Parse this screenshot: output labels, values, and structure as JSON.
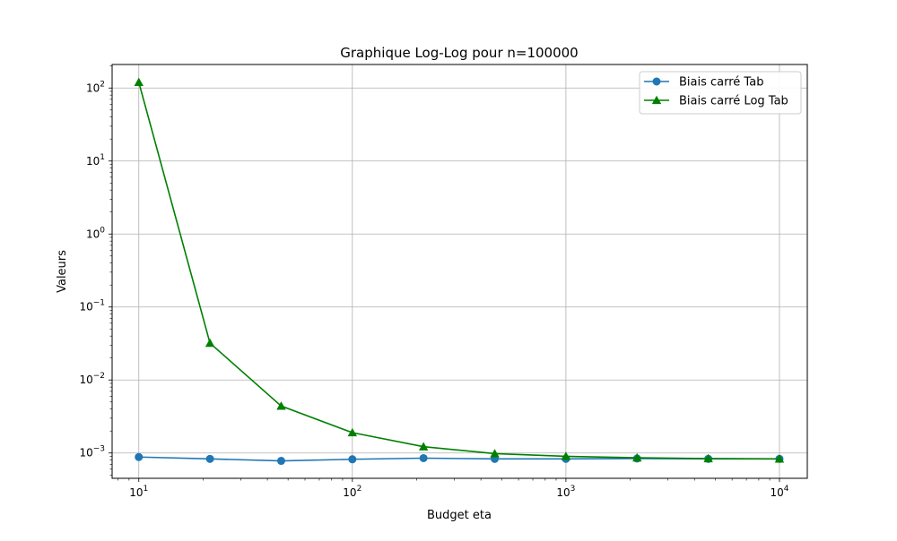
{
  "chart_data": {
    "type": "line",
    "title": "Graphique Log-Log pour n=100000",
    "xlabel": "Budget eta",
    "ylabel": "Valeurs",
    "x_scale": "log",
    "y_scale": "log",
    "xlim": [
      7.5,
      13500
    ],
    "ylim": [
      0.00045,
      210
    ],
    "x_ticks": [
      {
        "value": 10,
        "base": "10",
        "exp": "1"
      },
      {
        "value": 100,
        "base": "10",
        "exp": "2"
      },
      {
        "value": 1000,
        "base": "10",
        "exp": "3"
      },
      {
        "value": 10000,
        "base": "10",
        "exp": "4"
      }
    ],
    "y_ticks": [
      {
        "value": 0.001,
        "base": "10",
        "exp": "−3"
      },
      {
        "value": 0.01,
        "base": "10",
        "exp": "−2"
      },
      {
        "value": 0.1,
        "base": "10",
        "exp": "−1"
      },
      {
        "value": 1,
        "base": "10",
        "exp": "0"
      },
      {
        "value": 10,
        "base": "10",
        "exp": "1"
      },
      {
        "value": 100,
        "base": "10",
        "exp": "2"
      }
    ],
    "grid": true,
    "legend_position": "top-right",
    "x": [
      10,
      21.54,
      46.42,
      100,
      215.4,
      464.2,
      1000,
      2154,
      4642,
      10000
    ],
    "series": [
      {
        "name": "Biais carré Tab",
        "color": "#1f77b4",
        "marker": "circle",
        "values": [
          0.00088,
          0.00083,
          0.00078,
          0.00082,
          0.00085,
          0.00083,
          0.00083,
          0.00084,
          0.00083,
          0.00083
        ]
      },
      {
        "name": "Biais carré Log Tab",
        "color": "#008000",
        "marker": "triangle",
        "values": [
          120,
          0.032,
          0.0044,
          0.0019,
          0.00122,
          0.00098,
          0.0009,
          0.00086,
          0.00084,
          0.00083
        ]
      }
    ]
  }
}
